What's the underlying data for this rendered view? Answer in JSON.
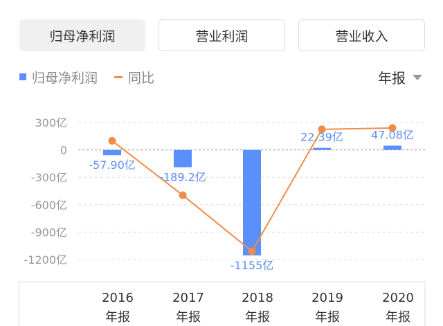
{
  "tabs": [
    {
      "label": "归母净利润",
      "active": true
    },
    {
      "label": "营业利润",
      "active": false
    },
    {
      "label": "营业收入",
      "active": false
    }
  ],
  "legend": {
    "bar_label": "归母净利润",
    "line_label": "同比"
  },
  "period": {
    "label": "年报",
    "icon": "caret-down-icon"
  },
  "colors": {
    "bar": "#5b8ff9",
    "line": "#f08c4a"
  },
  "chart_data": {
    "type": "bar",
    "categories": [
      "2016年报",
      "2017年报",
      "2018年报",
      "2019年报",
      "2020年报"
    ],
    "x_year": [
      "2016",
      "2017",
      "2018",
      "2019",
      "2020"
    ],
    "x_period": [
      "年报",
      "年报",
      "年报",
      "年报",
      "年报"
    ],
    "series": [
      {
        "name": "归母净利润",
        "type": "bar",
        "values": [
          -57.9,
          -189.2,
          -1155,
          22.39,
          47.08
        ],
        "labels": [
          "-57.90亿",
          "-189.2亿",
          "-1155亿",
          "22.39亿",
          "47.08亿"
        ]
      },
      {
        "name": "同比",
        "type": "line",
        "values": [
          100,
          -495,
          -1110,
          225,
          240
        ]
      }
    ],
    "y_ticks": [
      300,
      0,
      -300,
      -600,
      -900,
      -1200
    ],
    "y_tick_labels": [
      "300亿",
      "0",
      "-300亿",
      "-600亿",
      "-900亿",
      "-1200亿"
    ],
    "ylim": [
      -1200,
      300
    ]
  }
}
